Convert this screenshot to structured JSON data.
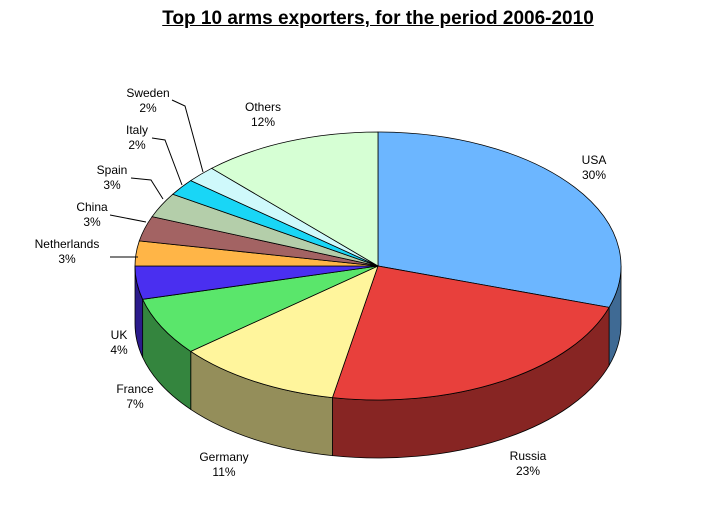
{
  "chart_data": {
    "type": "pie",
    "title": "Top 10 arms exporters, for the period 2006-2010",
    "slices": [
      {
        "name": "USA",
        "value": 30,
        "label": "30%",
        "color": "#6cb6ff"
      },
      {
        "name": "Russia",
        "value": 23,
        "label": "23%",
        "color": "#e8403c"
      },
      {
        "name": "Germany",
        "value": 11,
        "label": "11%",
        "color": "#fff59c"
      },
      {
        "name": "France",
        "value": 7,
        "label": "7%",
        "color": "#5ae66b"
      },
      {
        "name": "UK",
        "value": 4,
        "label": "4%",
        "color": "#4a2ff0"
      },
      {
        "name": "Netherlands",
        "value": 3,
        "label": "3%",
        "color": "#ffb547"
      },
      {
        "name": "China",
        "value": 3,
        "label": "3%",
        "color": "#a36363"
      },
      {
        "name": "Spain",
        "value": 3,
        "label": "3%",
        "color": "#b4ceaa"
      },
      {
        "name": "Italy",
        "value": 2,
        "label": "2%",
        "color": "#19d6f6"
      },
      {
        "name": "Sweden",
        "value": 2,
        "label": "2%",
        "color": "#cff9fb"
      },
      {
        "name": "Others",
        "value": 12,
        "label": "12%",
        "color": "#d6ffd4"
      }
    ]
  }
}
